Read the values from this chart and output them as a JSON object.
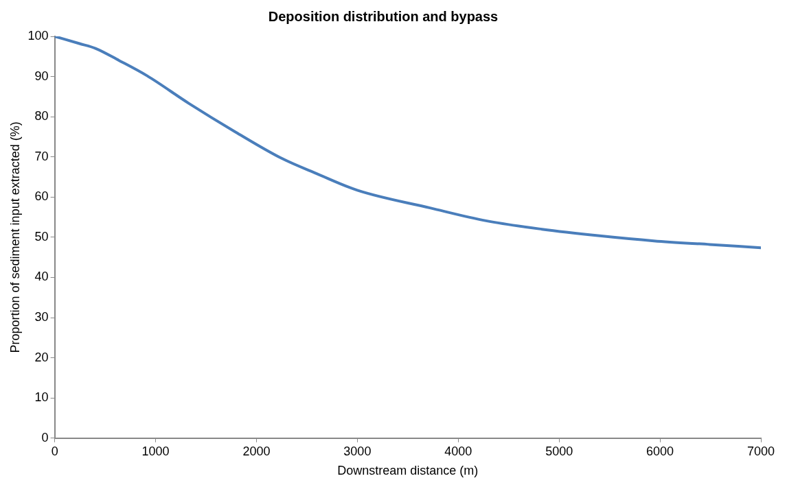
{
  "chart_data": {
    "type": "line",
    "title": "Deposition distribution and bypass",
    "xlabel": "Downstream distance (m)",
    "ylabel": "Proportion of sediment input extracted (%)",
    "x": [
      0,
      245,
      405,
      638,
      915,
      1331,
      1792,
      2253,
      2600,
      3000,
      3721,
      4276,
      4830,
      5385,
      5939,
      6494,
      7000
    ],
    "series": [
      {
        "color": "#4a7ebb",
        "values": [
          100,
          98.2,
          97.0,
          94.0,
          90.2,
          83.3,
          76.2,
          69.6,
          65.8,
          61.7,
          57.3,
          54.1,
          52.0,
          50.4,
          49.1,
          48.2,
          47.4
        ]
      }
    ],
    "xlim": [
      0,
      7000
    ],
    "xticks": [
      0,
      1000,
      2000,
      3000,
      4000,
      5000,
      6000,
      7000
    ],
    "ylim": [
      0,
      100
    ],
    "yticks": [
      0,
      10,
      20,
      30,
      40,
      50,
      60,
      70,
      80,
      90,
      100
    ],
    "grid": false,
    "legend": false,
    "marker": "none",
    "line_style": "solid"
  }
}
